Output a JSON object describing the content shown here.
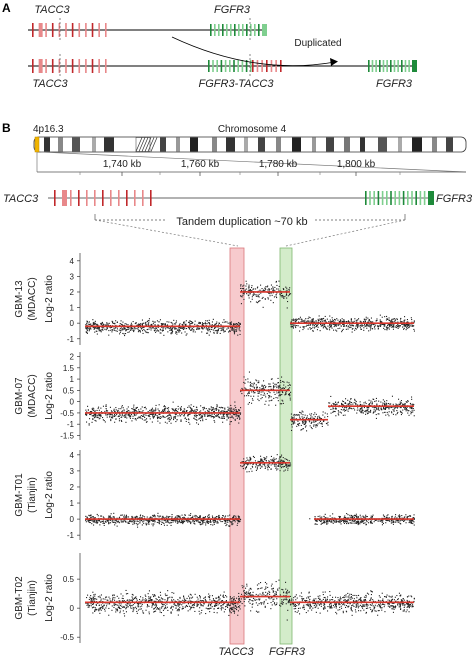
{
  "panel_a": {
    "label": "A",
    "gene_tacc3": "TACC3",
    "gene_fgfr3": "FGFR3",
    "fusion_label": "FGFR3-TACC3",
    "duplicated_label": "Duplicated",
    "colors": {
      "tacc3": "#c0282b",
      "tacc3_light": "#e8888a",
      "fgfr3": "#1e8a3a",
      "fgfr3_light": "#7fcf8f"
    }
  },
  "panel_b": {
    "label": "B",
    "band": "4p16.3",
    "chromosome": "Chromosome 4",
    "kb_ticks": [
      {
        "pos_kb": 1740,
        "label": "1,740 kb"
      },
      {
        "pos_kb": 1760,
        "label": "1,760 kb"
      },
      {
        "pos_kb": 1780,
        "label": "1,780 kb"
      },
      {
        "pos_kb": 1800,
        "label": "1,800 kb"
      }
    ],
    "gene_left": "TACC3",
    "gene_right": "FGFR3",
    "duplication_label": "Tandem duplication ~70 kb",
    "bottom_left": "TACC3",
    "bottom_right": "FGFR3",
    "highlight_colors": {
      "tacc3": "#f4b8bc",
      "fgfr3": "#c4e6b8"
    }
  },
  "chart_data": {
    "type": "scatter",
    "x_axis": "genomic position",
    "segment_color": "#d9362b",
    "series": [
      {
        "name": "GBM-13 (MDACC)",
        "sample": "GBM-13",
        "source": "(MDACC)",
        "ylabel": "Log-2 ratio",
        "ylim": [
          -1.4,
          4.5
        ],
        "yticks": [
          -1,
          0,
          1,
          2,
          3,
          4
        ],
        "baseline_left": -0.2,
        "duplication_level": 2.0,
        "baseline_right": 0.0
      },
      {
        "name": "GBM-07 (MDACC)",
        "sample": "GBM-07",
        "source": "(MDACC)",
        "ylabel": "Log-2 ratio",
        "ylim": [
          -1.7,
          2.2
        ],
        "yticks": [
          -1.5,
          -1,
          -0.5,
          0,
          0.5,
          1,
          1.5,
          2
        ],
        "baseline_left": -0.5,
        "duplication_level": 0.5,
        "dip_level": -0.8,
        "baseline_right": -0.2
      },
      {
        "name": "GBM-T01 (Tianjin)",
        "sample": "GBM-T01",
        "source": "(Tianjin)",
        "ylabel": "Log-2 ratio",
        "ylim": [
          -1.3,
          4.3
        ],
        "yticks": [
          -1,
          0,
          1,
          2,
          3,
          4
        ],
        "baseline_left": 0.0,
        "duplication_level": 3.5,
        "baseline_right": 0.0
      },
      {
        "name": "GBM-T02 (Tianjin)",
        "sample": "GBM-T02",
        "source": "(Tianjin)",
        "ylabel": "Log-2 ratio",
        "ylim": [
          -0.6,
          0.95
        ],
        "yticks": [
          -0.5,
          0,
          0.5
        ],
        "baseline_left": 0.1,
        "duplication_level": 0.2,
        "baseline_right": 0.1
      }
    ]
  }
}
